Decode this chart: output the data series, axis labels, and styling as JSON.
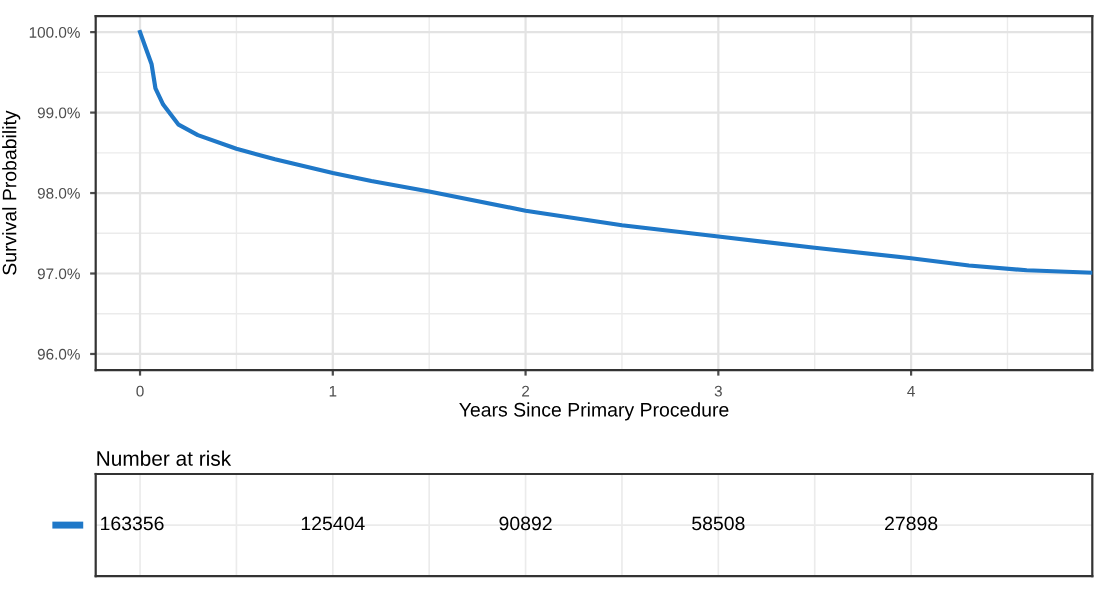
{
  "chart_data": [
    {
      "type": "line",
      "xlabel": "Years Since Primary Procedure",
      "ylabel": "Survival Probability",
      "xlim": [
        -0.23,
        4.94
      ],
      "ylim": [
        95.8,
        100.2
      ],
      "xticks": [
        0,
        1,
        2,
        3,
        4
      ],
      "yticks": [
        {
          "value": 96,
          "label": "96.0%"
        },
        {
          "value": 97,
          "label": "97.0%"
        },
        {
          "value": 98,
          "label": "98.0%"
        },
        {
          "value": 99,
          "label": "99.0%"
        },
        {
          "value": 100,
          "label": "100.0%"
        }
      ],
      "grid": true,
      "line_style": "solid",
      "series": [
        {
          "color": "#1f78c8",
          "x": [
            0,
            0.03,
            0.06,
            0.08,
            0.12,
            0.2,
            0.3,
            0.5,
            0.7,
            1.0,
            1.2,
            1.5,
            2.0,
            2.5,
            3.0,
            3.5,
            4.0,
            4.3,
            4.6,
            4.94
          ],
          "values": [
            100,
            99.8,
            99.6,
            99.3,
            99.1,
            98.85,
            98.72,
            98.55,
            98.42,
            98.25,
            98.15,
            98.02,
            97.78,
            97.6,
            97.46,
            97.32,
            97.19,
            97.1,
            97.04,
            97.01
          ]
        }
      ]
    },
    {
      "type": "other",
      "title": "Number at risk",
      "data_labels": true,
      "series": [
        {
          "color": "#1f78c8",
          "values": [
            163356,
            125404,
            90892,
            58508,
            27898
          ]
        }
      ]
    }
  ]
}
